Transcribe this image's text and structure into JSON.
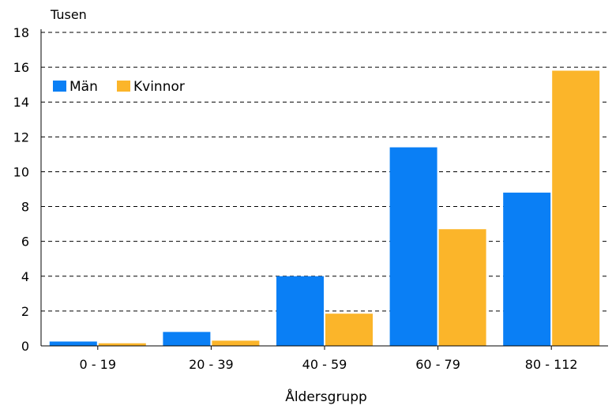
{
  "chart_data": {
    "type": "bar",
    "unit_label": "Tusen",
    "xlabel": "Åldersgrupp",
    "categories": [
      "0 - 19",
      "20 - 39",
      "40 - 59",
      "60 - 79",
      "80 - 112"
    ],
    "series": [
      {
        "name": "Män",
        "color": "#0a7ff5",
        "values": [
          0.25,
          0.8,
          4.0,
          11.4,
          8.8
        ]
      },
      {
        "name": "Kvinnor",
        "color": "#fbb52a",
        "values": [
          0.15,
          0.3,
          1.85,
          6.7,
          15.8
        ]
      }
    ],
    "ylim": [
      0,
      18
    ],
    "yticks": [
      "0",
      "2",
      "4",
      "6",
      "8",
      "10",
      "12",
      "14",
      "16",
      "18"
    ],
    "grid": "dashed-horizontal",
    "legend_position": "top-left"
  }
}
